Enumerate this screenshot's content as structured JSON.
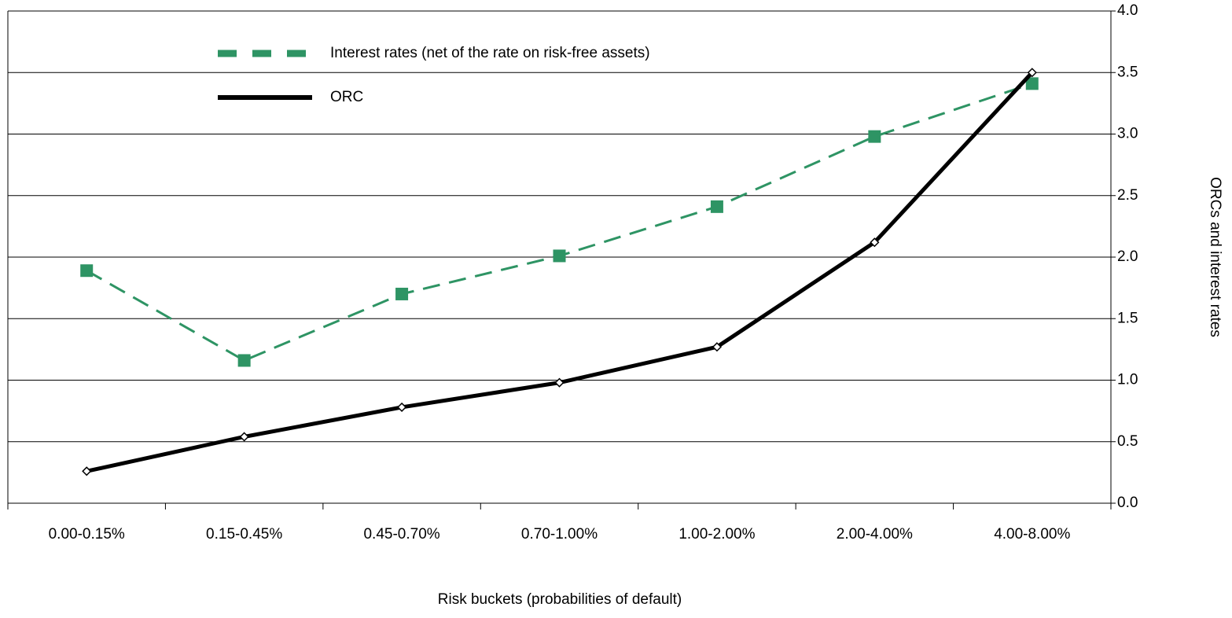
{
  "chart_data": {
    "type": "line",
    "x_label": "Risk buckets (probabilities of default)",
    "y_label": "ORCs and interest rates",
    "y_axis_side": "right",
    "categories": [
      "0.00-0.15%",
      "0.15-0.45%",
      "0.45-0.70%",
      "0.70-1.00%",
      "1.00-2.00%",
      "2.00-4.00%",
      "4.00-8.00%"
    ],
    "series": [
      {
        "name": "Interest rates (net of the rate on risk-free assets)",
        "color": "#2e9464",
        "dash": true,
        "marker": "square",
        "values": [
          1.89,
          1.16,
          1.7,
          2.01,
          2.41,
          2.98,
          3.41
        ]
      },
      {
        "name": "ORC",
        "color": "#000000",
        "dash": false,
        "marker": "diamond",
        "values": [
          0.26,
          0.54,
          0.78,
          0.98,
          1.27,
          2.12,
          3.5
        ]
      }
    ],
    "ylim": [
      0,
      4
    ],
    "yticks": [
      {
        "value": 0,
        "label": "0.0"
      },
      0.5,
      {
        "value": 1,
        "label": "1.0"
      },
      1.5,
      {
        "value": 2,
        "label": "2.0"
      },
      2.5,
      {
        "value": 3,
        "label": "3.0"
      },
      3.5,
      {
        "value": 4,
        "label": "4.0"
      }
    ],
    "grid": true,
    "legend": "upper left"
  }
}
